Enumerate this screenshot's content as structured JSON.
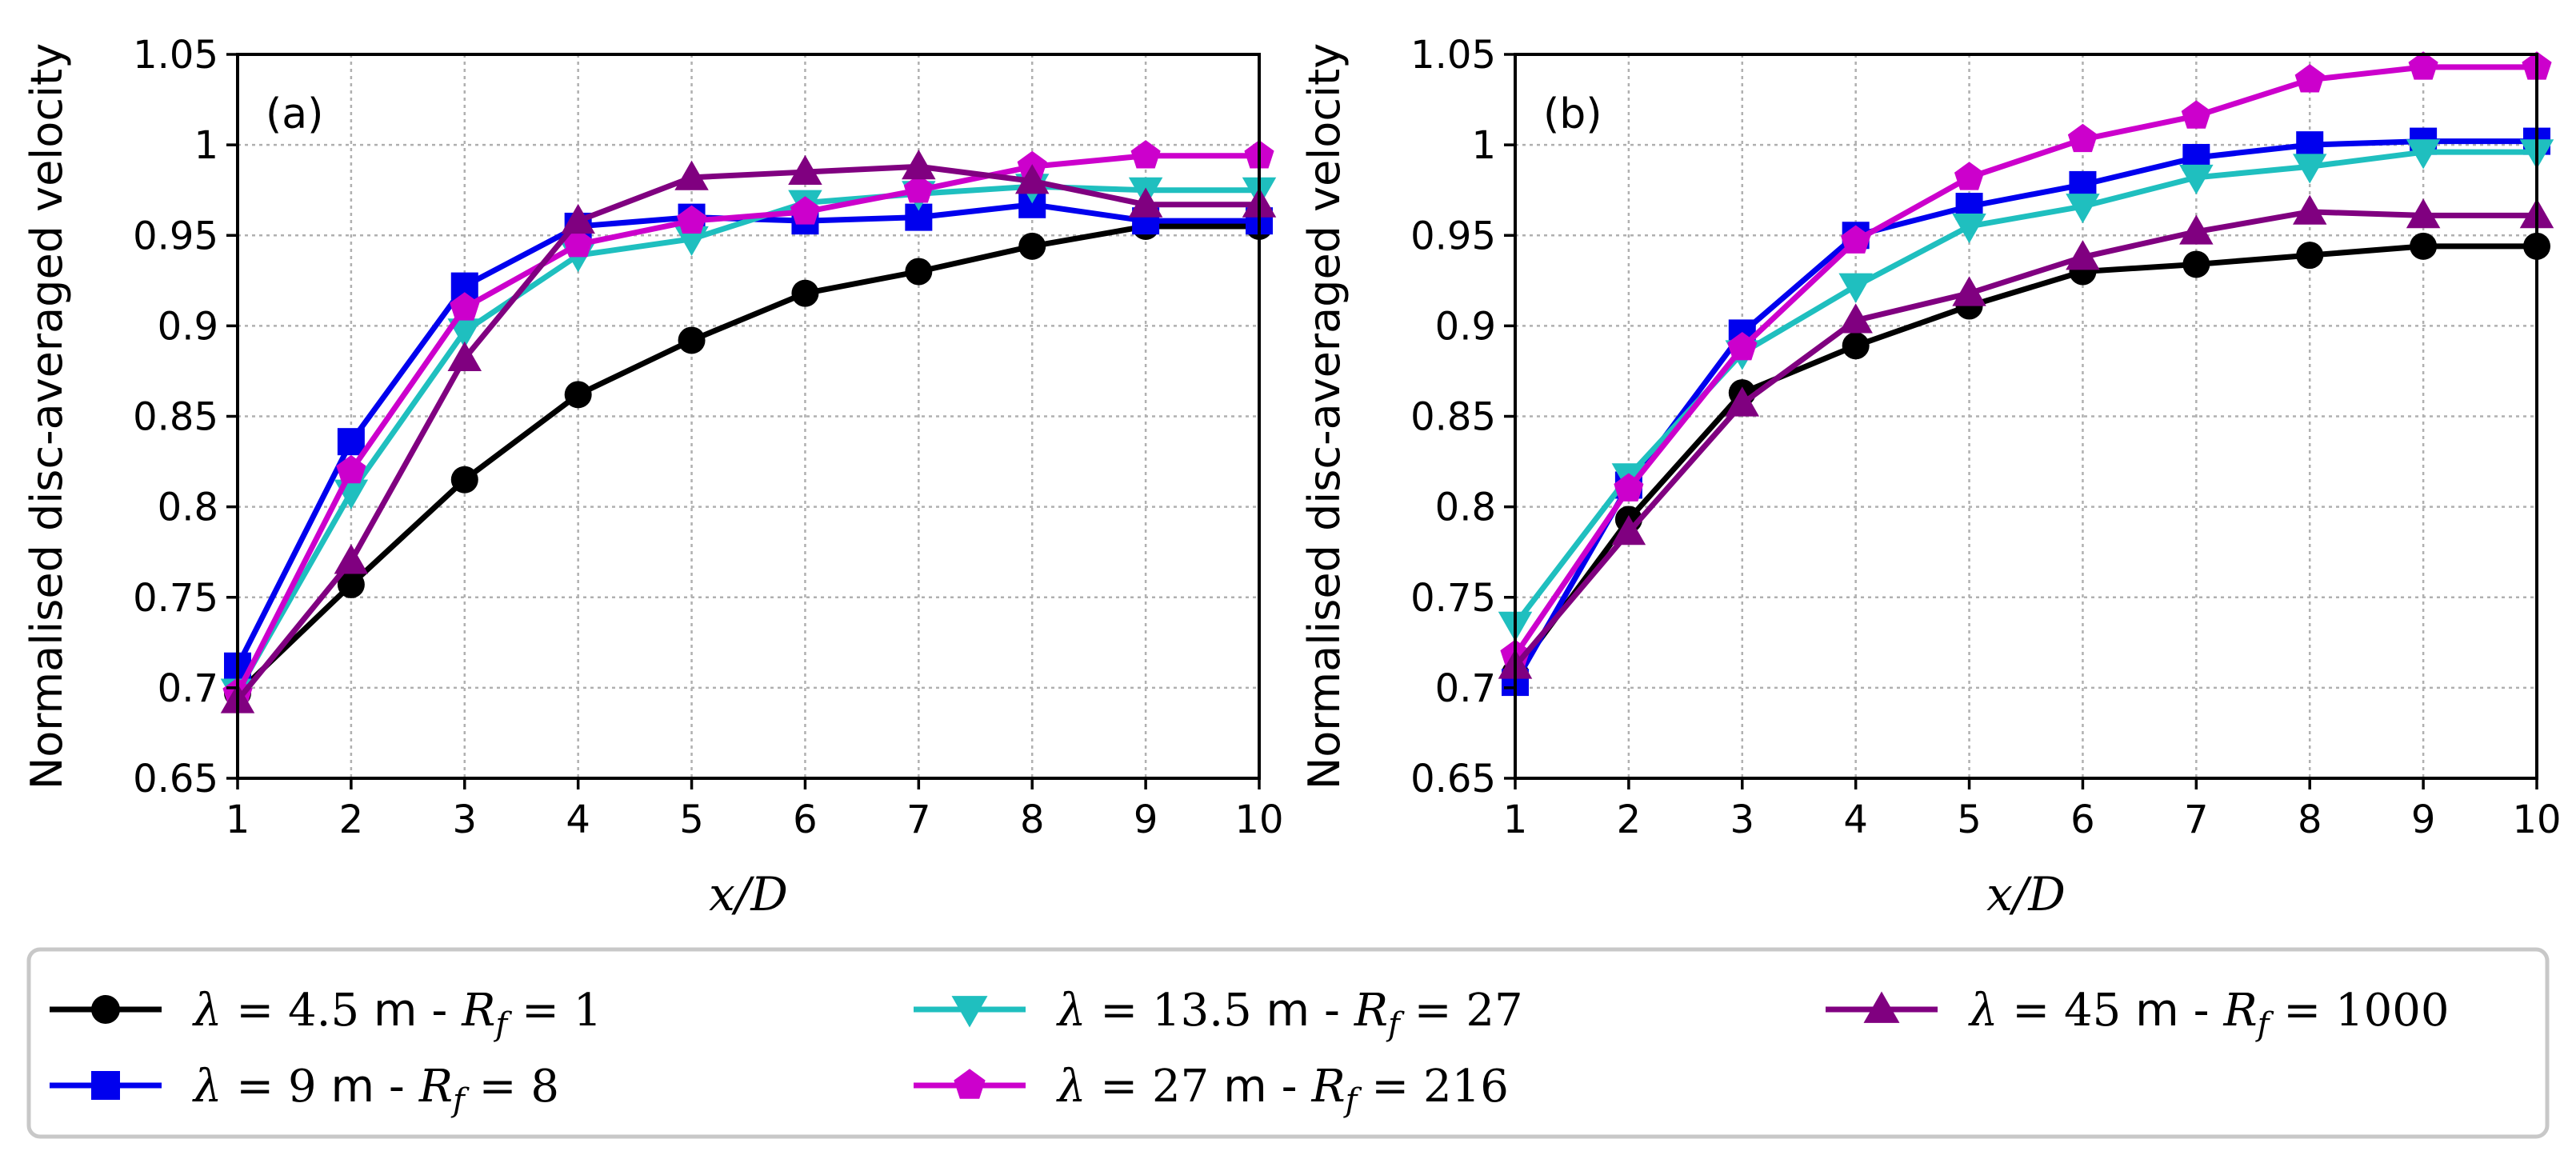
{
  "chart_data": [
    {
      "type": "line",
      "panel_label": "(a)",
      "xlabel": "x/D",
      "ylabel": "Normalised disc-averaged velocity",
      "xlim": [
        1,
        10
      ],
      "ylim": [
        0.65,
        1.05
      ],
      "xticks": [
        "1",
        "2",
        "3",
        "4",
        "5",
        "6",
        "7",
        "8",
        "9",
        "10"
      ],
      "yticks": [
        "0.65",
        "0.7",
        "0.75",
        "0.8",
        "0.85",
        "0.9",
        "0.95",
        "1",
        "1.05"
      ],
      "grid": true,
      "x": [
        1,
        2,
        3,
        4,
        5,
        6,
        7,
        8,
        9,
        10
      ],
      "series": [
        {
          "name": "λ = 4.5 m - R_f = 1",
          "color": "#000000",
          "marker": "circle",
          "values": [
            0.697,
            0.757,
            0.815,
            0.862,
            0.892,
            0.918,
            0.93,
            0.944,
            0.955,
            0.955
          ]
        },
        {
          "name": "λ = 9 m - R_f = 8",
          "color": "#0000ee",
          "marker": "square",
          "values": [
            0.712,
            0.836,
            0.922,
            0.955,
            0.96,
            0.958,
            0.96,
            0.967,
            0.958,
            0.958
          ]
        },
        {
          "name": "λ = 13.5 m - R_f = 27",
          "color": "#1fbfbf",
          "marker": "triangle-down",
          "values": [
            0.698,
            0.808,
            0.897,
            0.939,
            0.948,
            0.968,
            0.973,
            0.977,
            0.975,
            0.975
          ]
        },
        {
          "name": "λ = 27 m - R_f = 216",
          "color": "#cc00cc",
          "marker": "pentagon",
          "values": [
            0.697,
            0.82,
            0.91,
            0.945,
            0.958,
            0.963,
            0.975,
            0.988,
            0.994,
            0.994
          ]
        },
        {
          "name": "λ = 45 m - R_f = 1000",
          "color": "#800080",
          "marker": "triangle-up",
          "values": [
            0.693,
            0.77,
            0.882,
            0.958,
            0.982,
            0.985,
            0.988,
            0.98,
            0.967,
            0.967
          ]
        }
      ]
    },
    {
      "type": "line",
      "panel_label": "(b)",
      "xlabel": "x/D",
      "ylabel": "Normalised disc-averaged velocity",
      "xlim": [
        1,
        10
      ],
      "ylim": [
        0.65,
        1.05
      ],
      "xticks": [
        "1",
        "2",
        "3",
        "4",
        "5",
        "6",
        "7",
        "8",
        "9",
        "10"
      ],
      "yticks": [
        "0.65",
        "0.7",
        "0.75",
        "0.8",
        "0.85",
        "0.9",
        "0.95",
        "1",
        "1.05"
      ],
      "grid": true,
      "x": [
        1,
        2,
        3,
        4,
        5,
        6,
        7,
        8,
        9,
        10
      ],
      "series": [
        {
          "name": "λ = 4.5 m - R_f = 1",
          "color": "#000000",
          "marker": "circle",
          "values": [
            0.708,
            0.793,
            0.863,
            0.889,
            0.911,
            0.93,
            0.934,
            0.939,
            0.944,
            0.944
          ]
        },
        {
          "name": "λ = 9 m - R_f = 8",
          "color": "#0000ee",
          "marker": "square",
          "values": [
            0.703,
            0.812,
            0.896,
            0.95,
            0.966,
            0.978,
            0.993,
            1.0,
            1.002,
            1.002
          ]
        },
        {
          "name": "λ = 13.5 m - R_f = 27",
          "color": "#1fbfbf",
          "marker": "triangle-down",
          "values": [
            0.735,
            0.817,
            0.885,
            0.922,
            0.955,
            0.966,
            0.982,
            0.988,
            0.996,
            0.996
          ]
        },
        {
          "name": "λ = 27 m - R_f = 216",
          "color": "#cc00cc",
          "marker": "pentagon",
          "values": [
            0.718,
            0.81,
            0.888,
            0.947,
            0.982,
            1.003,
            1.016,
            1.036,
            1.043,
            1.043
          ]
        },
        {
          "name": "λ = 45 m - R_f = 1000",
          "color": "#800080",
          "marker": "triangle-up",
          "values": [
            0.712,
            0.786,
            0.857,
            0.903,
            0.918,
            0.938,
            0.952,
            0.963,
            0.961,
            0.961
          ]
        }
      ]
    }
  ],
  "legend": {
    "placement": "bottom",
    "entries": [
      {
        "lambda": "4.5",
        "rf": "1",
        "color": "#000000",
        "marker": "circle"
      },
      {
        "lambda": "13.5",
        "rf": "27",
        "color": "#1fbfbf",
        "marker": "triangle-down"
      },
      {
        "lambda": "45",
        "rf": "1000",
        "color": "#800080",
        "marker": "triangle-up"
      },
      {
        "lambda": "9",
        "rf": "8",
        "color": "#0000ee",
        "marker": "square"
      },
      {
        "lambda": "27",
        "rf": "216",
        "color": "#cc00cc",
        "marker": "pentagon"
      }
    ],
    "lambda_symbol": "λ",
    "equals": "=",
    "unit_text": "m -",
    "rf_symbol": "R",
    "rf_subscript": "f"
  }
}
